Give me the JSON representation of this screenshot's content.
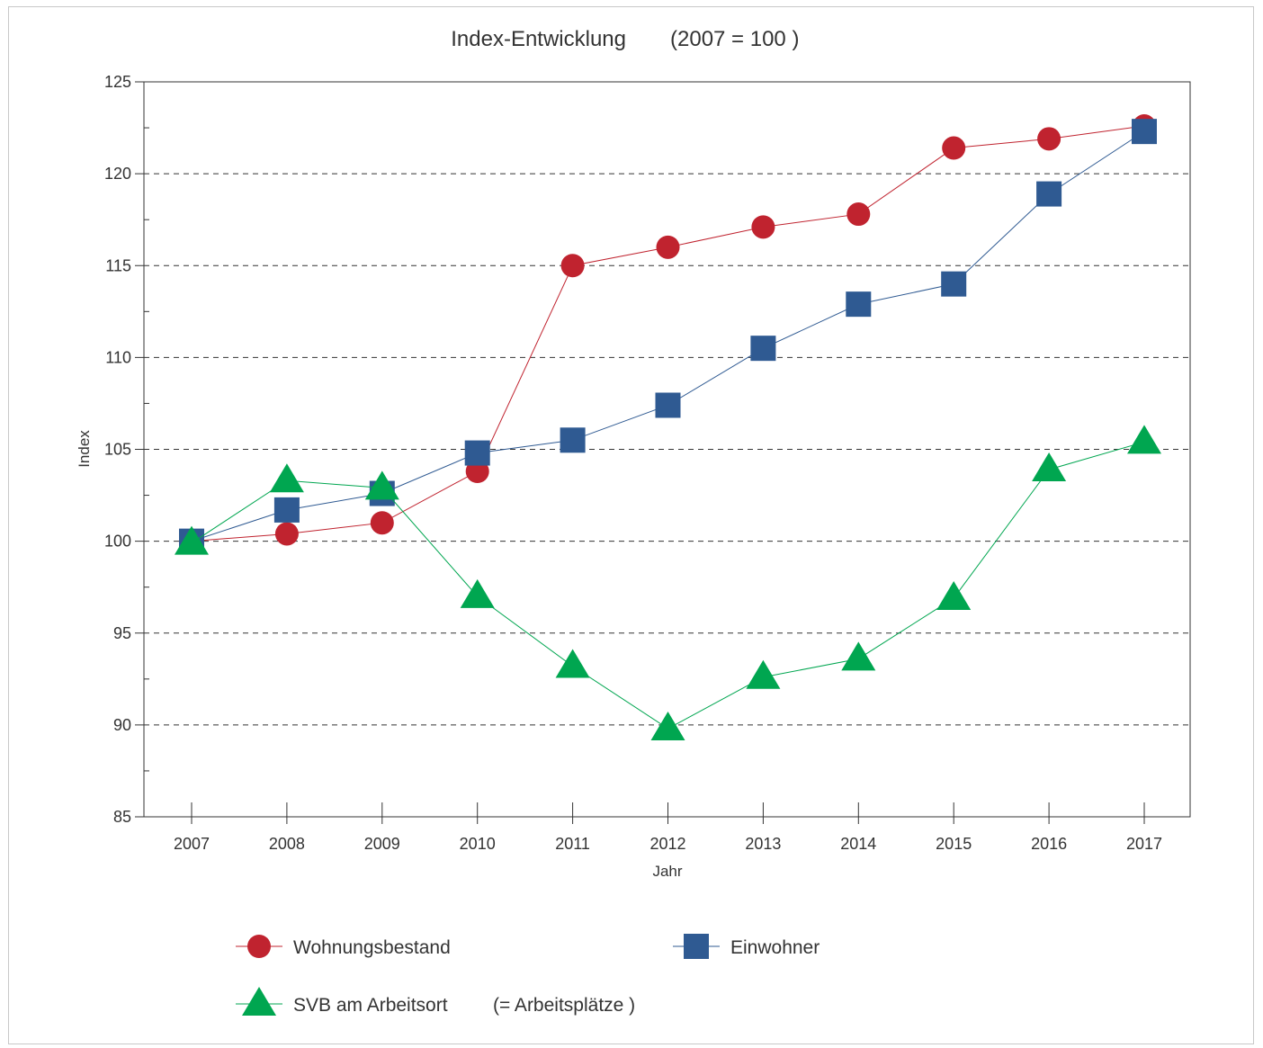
{
  "chart_data": {
    "type": "line",
    "title": "Index-Entwicklung",
    "subtitle": "(2007 = 100 )",
    "xlabel": "Jahr",
    "ylabel": "Index",
    "categories": [
      "2007",
      "2008",
      "2009",
      "2010",
      "2011",
      "2012",
      "2013",
      "2014",
      "2015",
      "2016",
      "2017"
    ],
    "ylim": [
      85,
      125
    ],
    "yticks": [
      85,
      90,
      95,
      100,
      105,
      110,
      115,
      120,
      125
    ],
    "ytick_labels": [
      "85",
      "90",
      "95",
      "100",
      "105",
      "110",
      "115",
      "120",
      "125"
    ],
    "grid": "horizontal dashed at 90, 95, 100, 105, 110, 115, 120",
    "legend_position": "bottom",
    "series": [
      {
        "name": "Wohnungsbestand",
        "marker": "circle",
        "color": "#c0232f",
        "values": [
          100,
          100.4,
          101,
          103.8,
          115,
          116,
          117.1,
          117.8,
          121.4,
          121.9,
          122.6
        ]
      },
      {
        "name": "Einwohner",
        "marker": "square",
        "color": "#2f5a92",
        "values": [
          100,
          101.7,
          102.6,
          104.8,
          105.5,
          107.4,
          110.5,
          112.9,
          114,
          118.9,
          122.3
        ]
      },
      {
        "name": "SVB am Arbeitsort",
        "name_suffix": "(= Arbeitsplätze )",
        "marker": "triangle",
        "color": "#00a650",
        "values": [
          99.9,
          103.3,
          102.9,
          97,
          93.2,
          89.8,
          92.6,
          93.6,
          96.9,
          103.9,
          105.4
        ]
      }
    ]
  }
}
